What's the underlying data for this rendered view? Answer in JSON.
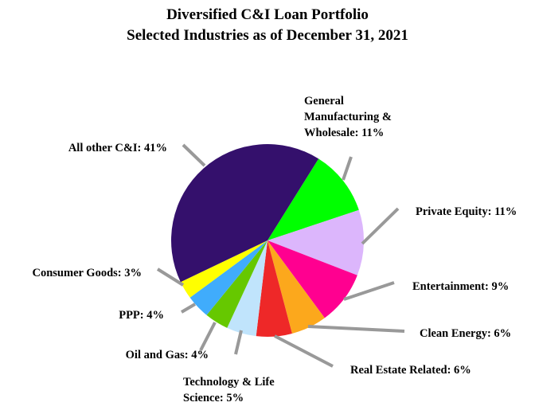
{
  "chart_data": {
    "type": "pie",
    "title": "Diversified C&I Loan Portfolio",
    "subtitle": "Selected Industries as of December 31, 2021",
    "start_angle_deg": 32,
    "direction": "clockwise",
    "slices": [
      {
        "label": "General Manufacturing & Wholesale",
        "value": 11,
        "text_lines": [
          "General",
          "Manufacturing &",
          "Wholesale: 11%"
        ],
        "color": "#00ff00"
      },
      {
        "label": "Private Equity",
        "value": 11,
        "text_lines": [
          "Private Equity: 11%"
        ],
        "color": "#dcb6fc"
      },
      {
        "label": "Entertainment",
        "value": 9,
        "text_lines": [
          "Entertainment: 9%"
        ],
        "color": "#ff0090"
      },
      {
        "label": "Clean Energy",
        "value": 6,
        "text_lines": [
          "Clean Energy: 6%"
        ],
        "color": "#fca81c"
      },
      {
        "label": "Real Estate Related",
        "value": 6,
        "text_lines": [
          "Real Estate Related: 6%"
        ],
        "color": "#ee2828"
      },
      {
        "label": "Technology & Life Science",
        "value": 5,
        "text_lines": [
          "Technology & Life",
          "Science: 5%"
        ],
        "color": "#c0e4fc"
      },
      {
        "label": "Oil and Gas",
        "value": 4,
        "text_lines": [
          "Oil and Gas: 4%"
        ],
        "color": "#66c800"
      },
      {
        "label": "PPP",
        "value": 4,
        "text_lines": [
          "PPP: 4%"
        ],
        "color": "#40acfc"
      },
      {
        "label": "Consumer Goods",
        "value": 3,
        "text_lines": [
          "Consumer Goods: 3%"
        ],
        "color": "#ffff00"
      },
      {
        "label": "All other C&I",
        "value": 41,
        "text_lines": [
          "All other C&I: 41%"
        ],
        "color": "#34106c"
      }
    ],
    "leader_line_color": "#999999"
  }
}
